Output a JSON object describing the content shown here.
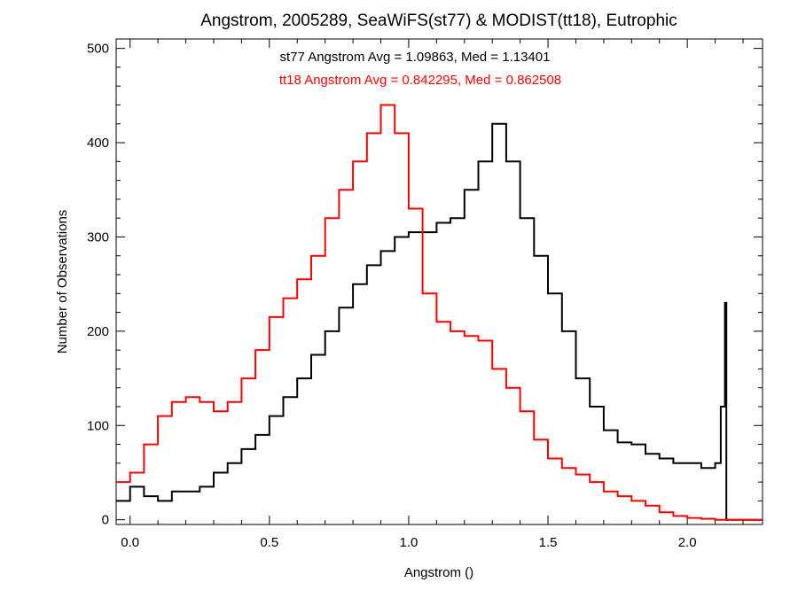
{
  "chart_data": {
    "type": "line",
    "title": "Angstrom, 2005289, SeaWiFS(st77) & MODIST(tt18), Eutrophic",
    "xlabel": "Angstrom ()",
    "ylabel": "Number of Observations",
    "xlim": [
      -0.05,
      2.27
    ],
    "ylim": [
      -5,
      510
    ],
    "x_ticks": [
      {
        "value": 0.0,
        "label": "0.0"
      },
      {
        "value": 0.5,
        "label": "0.5"
      },
      {
        "value": 1.0,
        "label": "1.0"
      },
      {
        "value": 1.5,
        "label": "1.5"
      },
      {
        "value": 2.0,
        "label": "2.0"
      }
    ],
    "y_ticks": [
      {
        "value": 0,
        "label": "0"
      },
      {
        "value": 100,
        "label": "100"
      },
      {
        "value": 200,
        "label": "200"
      },
      {
        "value": 300,
        "label": "300"
      },
      {
        "value": 400,
        "label": "400"
      },
      {
        "value": 500,
        "label": "500"
      }
    ],
    "annotations": [
      {
        "text": "st77 Angstrom Avg = 1.09863, Med = 1.13401",
        "color": "#000000"
      },
      {
        "text": "tt18 Angstrom Avg = 0.842295, Med = 0.862508",
        "color": "#ff0000"
      }
    ],
    "series": [
      {
        "color": "#000000",
        "x": [
          -0.05,
          0.0,
          0.05,
          0.1,
          0.15,
          0.2,
          0.25,
          0.3,
          0.35,
          0.4,
          0.45,
          0.5,
          0.55,
          0.6,
          0.65,
          0.7,
          0.75,
          0.8,
          0.85,
          0.9,
          0.95,
          1.0,
          1.05,
          1.1,
          1.15,
          1.2,
          1.25,
          1.3,
          1.35,
          1.4,
          1.45,
          1.5,
          1.55,
          1.6,
          1.65,
          1.7,
          1.75,
          1.8,
          1.85,
          1.9,
          1.95,
          2.0,
          2.05,
          2.1,
          2.12,
          2.135,
          2.14,
          2.15,
          2.2,
          2.25
        ],
        "values": [
          20,
          35,
          25,
          20,
          30,
          30,
          35,
          50,
          60,
          75,
          90,
          110,
          130,
          150,
          175,
          200,
          225,
          250,
          270,
          285,
          300,
          305,
          305,
          315,
          320,
          350,
          380,
          420,
          380,
          320,
          280,
          240,
          200,
          150,
          120,
          95,
          82,
          80,
          70,
          65,
          60,
          60,
          55,
          60,
          120,
          230,
          0,
          0,
          0,
          0
        ]
      },
      {
        "color": "#ff0000",
        "x": [
          -0.05,
          0.0,
          0.05,
          0.1,
          0.15,
          0.2,
          0.25,
          0.3,
          0.35,
          0.4,
          0.45,
          0.5,
          0.55,
          0.6,
          0.65,
          0.7,
          0.75,
          0.8,
          0.85,
          0.9,
          0.95,
          1.0,
          1.05,
          1.1,
          1.15,
          1.2,
          1.25,
          1.3,
          1.35,
          1.4,
          1.45,
          1.5,
          1.55,
          1.6,
          1.65,
          1.7,
          1.75,
          1.8,
          1.85,
          1.9,
          1.95,
          2.0,
          2.05,
          2.1,
          2.15,
          2.2,
          2.25
        ],
        "values": [
          40,
          50,
          80,
          110,
          125,
          130,
          125,
          115,
          125,
          150,
          180,
          215,
          235,
          255,
          280,
          320,
          350,
          380,
          410,
          440,
          410,
          330,
          240,
          210,
          200,
          195,
          190,
          160,
          140,
          115,
          85,
          65,
          55,
          48,
          40,
          30,
          25,
          20,
          15,
          8,
          4,
          2,
          1,
          0,
          0,
          0,
          0
        ]
      }
    ]
  }
}
